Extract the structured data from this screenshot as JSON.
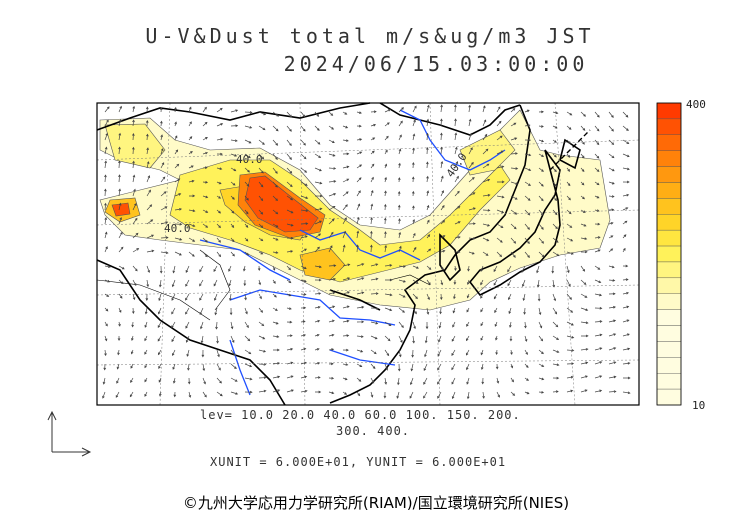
{
  "title": {
    "line1": "U-V&Dust total m/s&ug/m3 JST",
    "line2": "2024/06/15.03:00:00"
  },
  "legend": {
    "lev_line1": "lev= 10.0 20.0 40.0 60.0 100. 150. 200.",
    "lev_line2": "300. 400.",
    "unit_line": "XUNIT = 6.000E+01, YUNIT = 6.000E+01",
    "colorbar_max": "400",
    "colorbar_min": "10",
    "colorbar_colors": [
      "#fffbc8",
      "#fff8a8",
      "#fff580",
      "#fff25a",
      "#ffe640",
      "#ffd428",
      "#ffc31e",
      "#ffae14",
      "#ff980f",
      "#ff820a",
      "#ff6a06",
      "#ff5203",
      "#ff3a00"
    ]
  },
  "contour_labels": [
    "40.0",
    "40.0",
    "40.0"
  ],
  "credit": "©九州大学応用力学研究所(RIAM)/国立環境研究所(NIES)"
}
